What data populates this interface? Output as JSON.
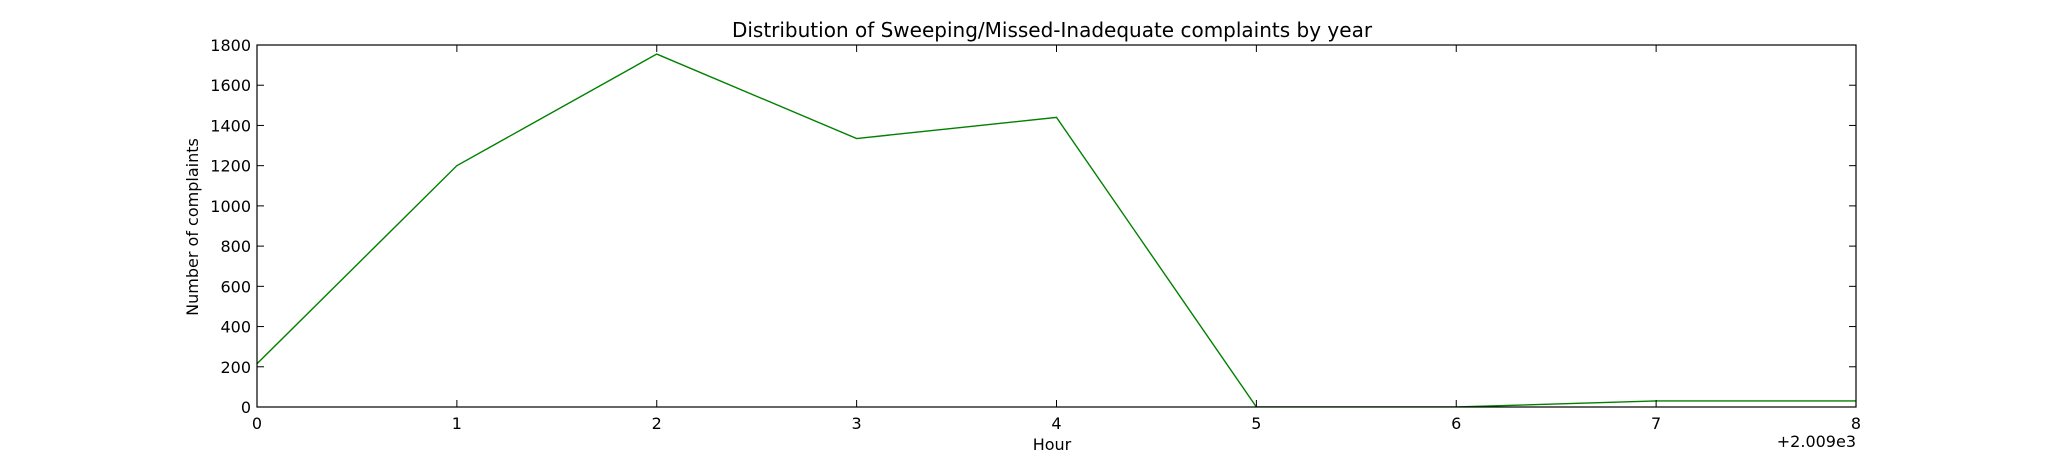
{
  "chart_data": {
    "type": "line",
    "title": "Distribution of  Sweeping/Missed-Inadequate complaints by year",
    "xlabel": "Hour",
    "ylabel": "Number of complaints",
    "x_offset_label": "+2.009e3",
    "x": [
      0,
      1,
      2,
      3,
      4,
      5,
      6,
      7,
      8
    ],
    "xlim": [
      0,
      8
    ],
    "ylim": [
      0,
      1800
    ],
    "xticks": [
      "0",
      "1",
      "2",
      "3",
      "4",
      "5",
      "6",
      "7",
      "8"
    ],
    "yticks": [
      "0",
      "200",
      "400",
      "600",
      "800",
      "1000",
      "1200",
      "1400",
      "1600",
      "1800"
    ],
    "grid": false,
    "series": [
      {
        "color": "#008000",
        "values": [
          215,
          1200,
          1755,
          1335,
          1440,
          0,
          0,
          30,
          30
        ]
      }
    ]
  }
}
